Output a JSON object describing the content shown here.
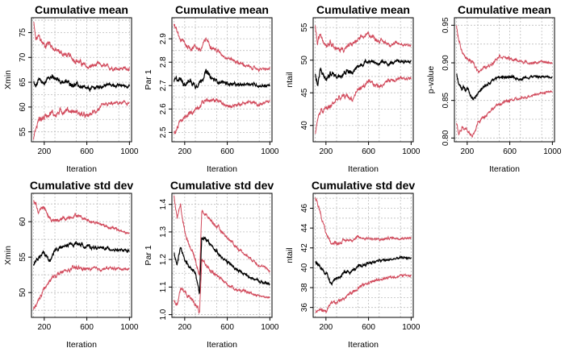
{
  "chart_data": [
    {
      "type": "line",
      "title": "Cumulative mean",
      "xlabel": "Iteration",
      "ylabel": "Xmin",
      "xlim": [
        80,
        1020
      ],
      "ylim": [
        53,
        78
      ],
      "xticks": [
        200,
        600,
        1000
      ],
      "yticks": [
        55,
        60,
        65,
        70,
        75
      ],
      "ytick_labels": [
        "55",
        "60",
        "65",
        "70",
        "75"
      ],
      "grid": true,
      "series": [
        {
          "role": "upper",
          "color": "#d1495b",
          "noise": 0.5,
          "x": [
            100,
            120,
            150,
            200,
            250,
            300,
            400,
            500,
            600,
            700,
            800,
            900,
            1000
          ],
          "y": [
            77,
            73.5,
            74,
            72.5,
            73,
            71.5,
            70.5,
            69.5,
            68,
            68.5,
            68,
            67.8,
            67.8
          ]
        },
        {
          "role": "mean",
          "color": "#000000",
          "noise": 0.4,
          "x": [
            100,
            120,
            150,
            200,
            250,
            300,
            400,
            500,
            600,
            700,
            800,
            900,
            1000
          ],
          "y": [
            65,
            63.5,
            66,
            64.5,
            66.5,
            65.5,
            65,
            64.5,
            63.5,
            64,
            64.5,
            64.3,
            64.3
          ]
        },
        {
          "role": "lower",
          "color": "#d1495b",
          "noise": 0.5,
          "x": [
            100,
            120,
            150,
            200,
            250,
            300,
            400,
            500,
            600,
            700,
            800,
            900,
            1000
          ],
          "y": [
            54,
            55.5,
            57.5,
            58,
            59,
            58.5,
            59.5,
            59,
            58,
            59.5,
            60.5,
            60.8,
            60.8
          ]
        }
      ]
    },
    {
      "type": "line",
      "title": "Cumulative mean",
      "xlabel": "Iteration",
      "ylabel": "Par 1",
      "xlim": [
        80,
        1020
      ],
      "ylim": [
        2.46,
        2.99
      ],
      "xticks": [
        200,
        600,
        1000
      ],
      "yticks": [
        2.5,
        2.6,
        2.7,
        2.8,
        2.9
      ],
      "ytick_labels": [
        "2.5",
        "2.6",
        "2.7",
        "2.8",
        "2.9"
      ],
      "grid": true,
      "series": [
        {
          "role": "upper",
          "color": "#d1495b",
          "noise": 0.008,
          "x": [
            100,
            150,
            200,
            250,
            300,
            350,
            400,
            450,
            500,
            600,
            700,
            800,
            900,
            1000
          ],
          "y": [
            2.96,
            2.9,
            2.88,
            2.86,
            2.87,
            2.85,
            2.9,
            2.87,
            2.85,
            2.82,
            2.8,
            2.78,
            2.77,
            2.77
          ]
        },
        {
          "role": "mean",
          "color": "#000000",
          "noise": 0.008,
          "x": [
            100,
            150,
            200,
            250,
            300,
            350,
            400,
            450,
            500,
            600,
            700,
            800,
            900,
            1000
          ],
          "y": [
            2.72,
            2.73,
            2.71,
            2.72,
            2.7,
            2.72,
            2.76,
            2.73,
            2.72,
            2.71,
            2.7,
            2.71,
            2.7,
            2.7
          ]
        },
        {
          "role": "lower",
          "color": "#d1495b",
          "noise": 0.008,
          "x": [
            100,
            150,
            200,
            250,
            300,
            350,
            400,
            450,
            500,
            600,
            700,
            800,
            900,
            1000
          ],
          "y": [
            2.49,
            2.54,
            2.56,
            2.58,
            2.6,
            2.62,
            2.64,
            2.63,
            2.64,
            2.61,
            2.62,
            2.63,
            2.62,
            2.63
          ]
        }
      ]
    },
    {
      "type": "line",
      "title": "Cumulative mean",
      "xlabel": "Iteration",
      "ylabel": "ntail",
      "xlim": [
        80,
        1020
      ],
      "ylim": [
        37.5,
        56.5
      ],
      "xticks": [
        200,
        600,
        1000
      ],
      "yticks": [
        40,
        45,
        50,
        55
      ],
      "ytick_labels": [
        "40",
        "45",
        "50",
        "55"
      ],
      "grid": true,
      "series": [
        {
          "role": "upper",
          "color": "#d1495b",
          "noise": 0.35,
          "x": [
            100,
            120,
            150,
            200,
            250,
            300,
            400,
            450,
            500,
            600,
            700,
            800,
            900,
            1000
          ],
          "y": [
            55.5,
            52.5,
            54,
            52.5,
            53,
            51.5,
            52,
            52.5,
            53,
            54,
            53,
            52.5,
            52.5,
            52.3
          ]
        },
        {
          "role": "mean",
          "color": "#000000",
          "noise": 0.3,
          "x": [
            100,
            120,
            150,
            200,
            250,
            300,
            400,
            450,
            500,
            600,
            700,
            800,
            900,
            1000
          ],
          "y": [
            48,
            46,
            48.5,
            47,
            48,
            47.5,
            48.5,
            48,
            49,
            50,
            49.5,
            49.5,
            49.8,
            49.8
          ]
        },
        {
          "role": "lower",
          "color": "#d1495b",
          "noise": 0.35,
          "x": [
            100,
            120,
            150,
            200,
            250,
            300,
            400,
            450,
            500,
            600,
            700,
            800,
            900,
            1000
          ],
          "y": [
            39,
            41,
            42,
            42.5,
            43,
            44,
            44.5,
            44,
            45.5,
            46.5,
            46,
            47,
            47.2,
            47.2
          ]
        }
      ]
    },
    {
      "type": "line",
      "title": "Cumulative mean",
      "xlabel": "Iteration",
      "ylabel": "p-value",
      "xlim": [
        80,
        1020
      ],
      "ylim": [
        0.795,
        0.96
      ],
      "xticks": [
        200,
        600,
        1000
      ],
      "yticks": [
        0.8,
        0.85,
        0.9,
        0.95
      ],
      "ytick_labels": [
        "0.80",
        "0.85",
        "0.90",
        "0.95"
      ],
      "grid": true,
      "series": [
        {
          "role": "upper",
          "color": "#d1495b",
          "noise": 0.002,
          "x": [
            100,
            120,
            150,
            200,
            250,
            300,
            400,
            500,
            600,
            700,
            800,
            900,
            1000
          ],
          "y": [
            0.95,
            0.93,
            0.915,
            0.905,
            0.9,
            0.89,
            0.895,
            0.91,
            0.905,
            0.902,
            0.9,
            0.901,
            0.9
          ]
        },
        {
          "role": "mean",
          "color": "#000000",
          "noise": 0.002,
          "x": [
            100,
            120,
            150,
            200,
            250,
            300,
            400,
            500,
            600,
            700,
            800,
            900,
            1000
          ],
          "y": [
            0.885,
            0.87,
            0.865,
            0.868,
            0.852,
            0.86,
            0.872,
            0.882,
            0.88,
            0.879,
            0.882,
            0.881,
            0.882
          ]
        },
        {
          "role": "lower",
          "color": "#d1495b",
          "noise": 0.002,
          "x": [
            100,
            120,
            150,
            200,
            250,
            300,
            400,
            500,
            600,
            700,
            800,
            900,
            1000
          ],
          "y": [
            0.82,
            0.805,
            0.815,
            0.812,
            0.8,
            0.82,
            0.835,
            0.845,
            0.85,
            0.852,
            0.857,
            0.86,
            0.862
          ]
        }
      ]
    },
    {
      "type": "line",
      "title": "Cumulative std dev",
      "xlabel": "Iteration",
      "ylabel": "Xmin",
      "xlim": [
        80,
        1020
      ],
      "ylim": [
        46.5,
        64
      ],
      "xticks": [
        200,
        600,
        1000
      ],
      "yticks": [
        50,
        55,
        60
      ],
      "ytick_labels": [
        "50",
        "55",
        "60"
      ],
      "grid": true,
      "series": [
        {
          "role": "upper",
          "color": "#d1495b",
          "noise": 0.25,
          "x": [
            100,
            150,
            200,
            250,
            300,
            400,
            500,
            600,
            700,
            800,
            900,
            1000
          ],
          "y": [
            63,
            61.5,
            62,
            60.5,
            60,
            60.5,
            61,
            60.3,
            59.8,
            59.3,
            58.8,
            58.3
          ]
        },
        {
          "role": "mean",
          "color": "#000000",
          "noise": 0.25,
          "x": [
            100,
            150,
            200,
            250,
            300,
            400,
            500,
            600,
            700,
            800,
            900,
            1000
          ],
          "y": [
            54,
            55,
            55.5,
            54.5,
            56,
            56.5,
            57,
            56.5,
            56.3,
            56.2,
            56,
            55.8
          ]
        },
        {
          "role": "lower",
          "color": "#d1495b",
          "noise": 0.25,
          "x": [
            100,
            150,
            200,
            250,
            300,
            400,
            500,
            600,
            700,
            800,
            900,
            1000
          ],
          "y": [
            47.5,
            49,
            50.5,
            51.5,
            52.5,
            53,
            53.5,
            53.3,
            53.3,
            53.4,
            53.4,
            53.3
          ]
        }
      ]
    },
    {
      "type": "line",
      "title": "Cumulative std dev",
      "xlabel": "Iteration",
      "ylabel": "Par 1",
      "xlim": [
        80,
        1020
      ],
      "ylim": [
        0.99,
        1.44
      ],
      "xticks": [
        200,
        600,
        1000
      ],
      "yticks": [
        1.0,
        1.1,
        1.2,
        1.3,
        1.4
      ],
      "ytick_labels": [
        "1.0",
        "1.1",
        "1.2",
        "1.3",
        "1.4"
      ],
      "grid": true,
      "series": [
        {
          "role": "upper",
          "color": "#d1495b",
          "noise": 0.006,
          "x": [
            100,
            130,
            160,
            200,
            250,
            300,
            340,
            360,
            400,
            500,
            600,
            700,
            800,
            900,
            1000
          ],
          "y": [
            1.43,
            1.35,
            1.4,
            1.3,
            1.25,
            1.2,
            1.14,
            1.38,
            1.36,
            1.32,
            1.28,
            1.24,
            1.21,
            1.18,
            1.16
          ]
        },
        {
          "role": "mean",
          "color": "#000000",
          "noise": 0.006,
          "x": [
            100,
            130,
            160,
            200,
            250,
            300,
            340,
            360,
            400,
            500,
            600,
            700,
            800,
            900,
            1000
          ],
          "y": [
            1.22,
            1.18,
            1.25,
            1.2,
            1.17,
            1.15,
            1.08,
            1.28,
            1.27,
            1.23,
            1.19,
            1.16,
            1.14,
            1.12,
            1.11
          ]
        },
        {
          "role": "lower",
          "color": "#d1495b",
          "noise": 0.006,
          "x": [
            100,
            130,
            160,
            200,
            250,
            300,
            340,
            360,
            400,
            500,
            600,
            700,
            800,
            900,
            1000
          ],
          "y": [
            1.05,
            1.04,
            1.1,
            1.08,
            1.06,
            1.04,
            1.01,
            1.19,
            1.18,
            1.14,
            1.11,
            1.09,
            1.08,
            1.07,
            1.06
          ]
        }
      ]
    },
    {
      "type": "line",
      "title": "Cumulative std dev",
      "xlabel": "Iteration",
      "ylabel": "ntail",
      "xlim": [
        80,
        1020
      ],
      "ylim": [
        35,
        47.5
      ],
      "xticks": [
        200,
        600,
        1000
      ],
      "yticks": [
        36,
        38,
        40,
        42,
        44,
        46
      ],
      "ytick_labels": [
        "36",
        "38",
        "40",
        "42",
        "44",
        "46"
      ],
      "grid": true,
      "series": [
        {
          "role": "upper",
          "color": "#d1495b",
          "noise": 0.15,
          "x": [
            100,
            150,
            200,
            250,
            300,
            400,
            500,
            600,
            700,
            800,
            900,
            1000
          ],
          "y": [
            47,
            45.5,
            43.5,
            42.5,
            42.5,
            42.8,
            43,
            43,
            42.8,
            43,
            43,
            43
          ]
        },
        {
          "role": "mean",
          "color": "#000000",
          "noise": 0.15,
          "x": [
            100,
            150,
            200,
            250,
            300,
            400,
            500,
            600,
            700,
            800,
            900,
            1000
          ],
          "y": [
            40.5,
            40,
            39.5,
            38.5,
            39,
            39.5,
            40,
            40.5,
            40.7,
            40.8,
            41,
            41
          ]
        },
        {
          "role": "lower",
          "color": "#d1495b",
          "noise": 0.15,
          "x": [
            100,
            150,
            200,
            250,
            300,
            400,
            500,
            600,
            700,
            800,
            900,
            1000
          ],
          "y": [
            35.5,
            35.8,
            35.6,
            36.3,
            36.5,
            37.2,
            38,
            38.5,
            38.8,
            39,
            39.2,
            39.3
          ]
        }
      ]
    }
  ]
}
